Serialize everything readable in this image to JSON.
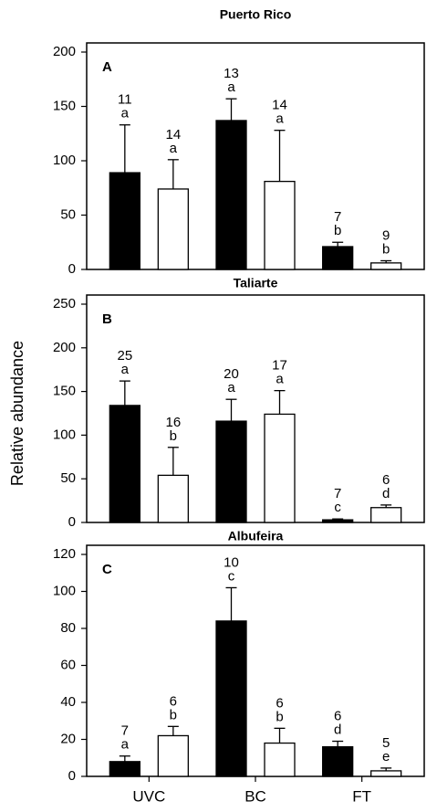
{
  "chart_data": [
    {
      "type": "bar",
      "title": "Puerto Rico",
      "panel": "A",
      "ylim": [
        0,
        200
      ],
      "yticks": [
        0,
        50,
        100,
        150,
        200
      ],
      "series": [
        {
          "color": "#000000",
          "values": [
            89,
            137,
            21
          ],
          "errors": [
            44,
            20,
            4
          ],
          "n": [
            11,
            13,
            7
          ],
          "letters": [
            "a",
            "a",
            "b"
          ]
        },
        {
          "color": "#ffffff",
          "values": [
            74,
            81,
            6
          ],
          "errors": [
            27,
            47,
            2
          ],
          "n": [
            14,
            14,
            9
          ],
          "letters": [
            "a",
            "a",
            "b"
          ]
        }
      ]
    },
    {
      "type": "bar",
      "title": "Taliarte",
      "panel": "B",
      "ylabel": "Relative abundance",
      "ylim": [
        0,
        250
      ],
      "yticks": [
        0,
        50,
        100,
        150,
        200,
        250
      ],
      "series": [
        {
          "color": "#000000",
          "values": [
            134,
            116,
            3
          ],
          "errors": [
            28,
            25,
            1
          ],
          "n": [
            25,
            20,
            7
          ],
          "letters": [
            "a",
            "a",
            "c"
          ]
        },
        {
          "color": "#ffffff",
          "values": [
            54,
            124,
            17
          ],
          "errors": [
            32,
            27,
            3
          ],
          "n": [
            16,
            17,
            6
          ],
          "letters": [
            "b",
            "a",
            "d"
          ]
        }
      ]
    },
    {
      "type": "bar",
      "title": "Albufeira",
      "panel": "C",
      "categories": [
        "UVC",
        "BC",
        "FT"
      ],
      "ylim": [
        0,
        120
      ],
      "yticks": [
        0,
        20,
        40,
        60,
        80,
        100,
        120
      ],
      "series": [
        {
          "color": "#000000",
          "values": [
            8,
            84,
            16
          ],
          "errors": [
            3,
            18,
            3
          ],
          "n": [
            7,
            10,
            6
          ],
          "letters": [
            "a",
            "c",
            "d"
          ]
        },
        {
          "color": "#ffffff",
          "values": [
            22,
            18,
            3
          ],
          "errors": [
            5,
            8,
            1.5
          ],
          "n": [
            6,
            6,
            5
          ],
          "letters": [
            "b",
            "b",
            "e"
          ]
        }
      ]
    }
  ]
}
